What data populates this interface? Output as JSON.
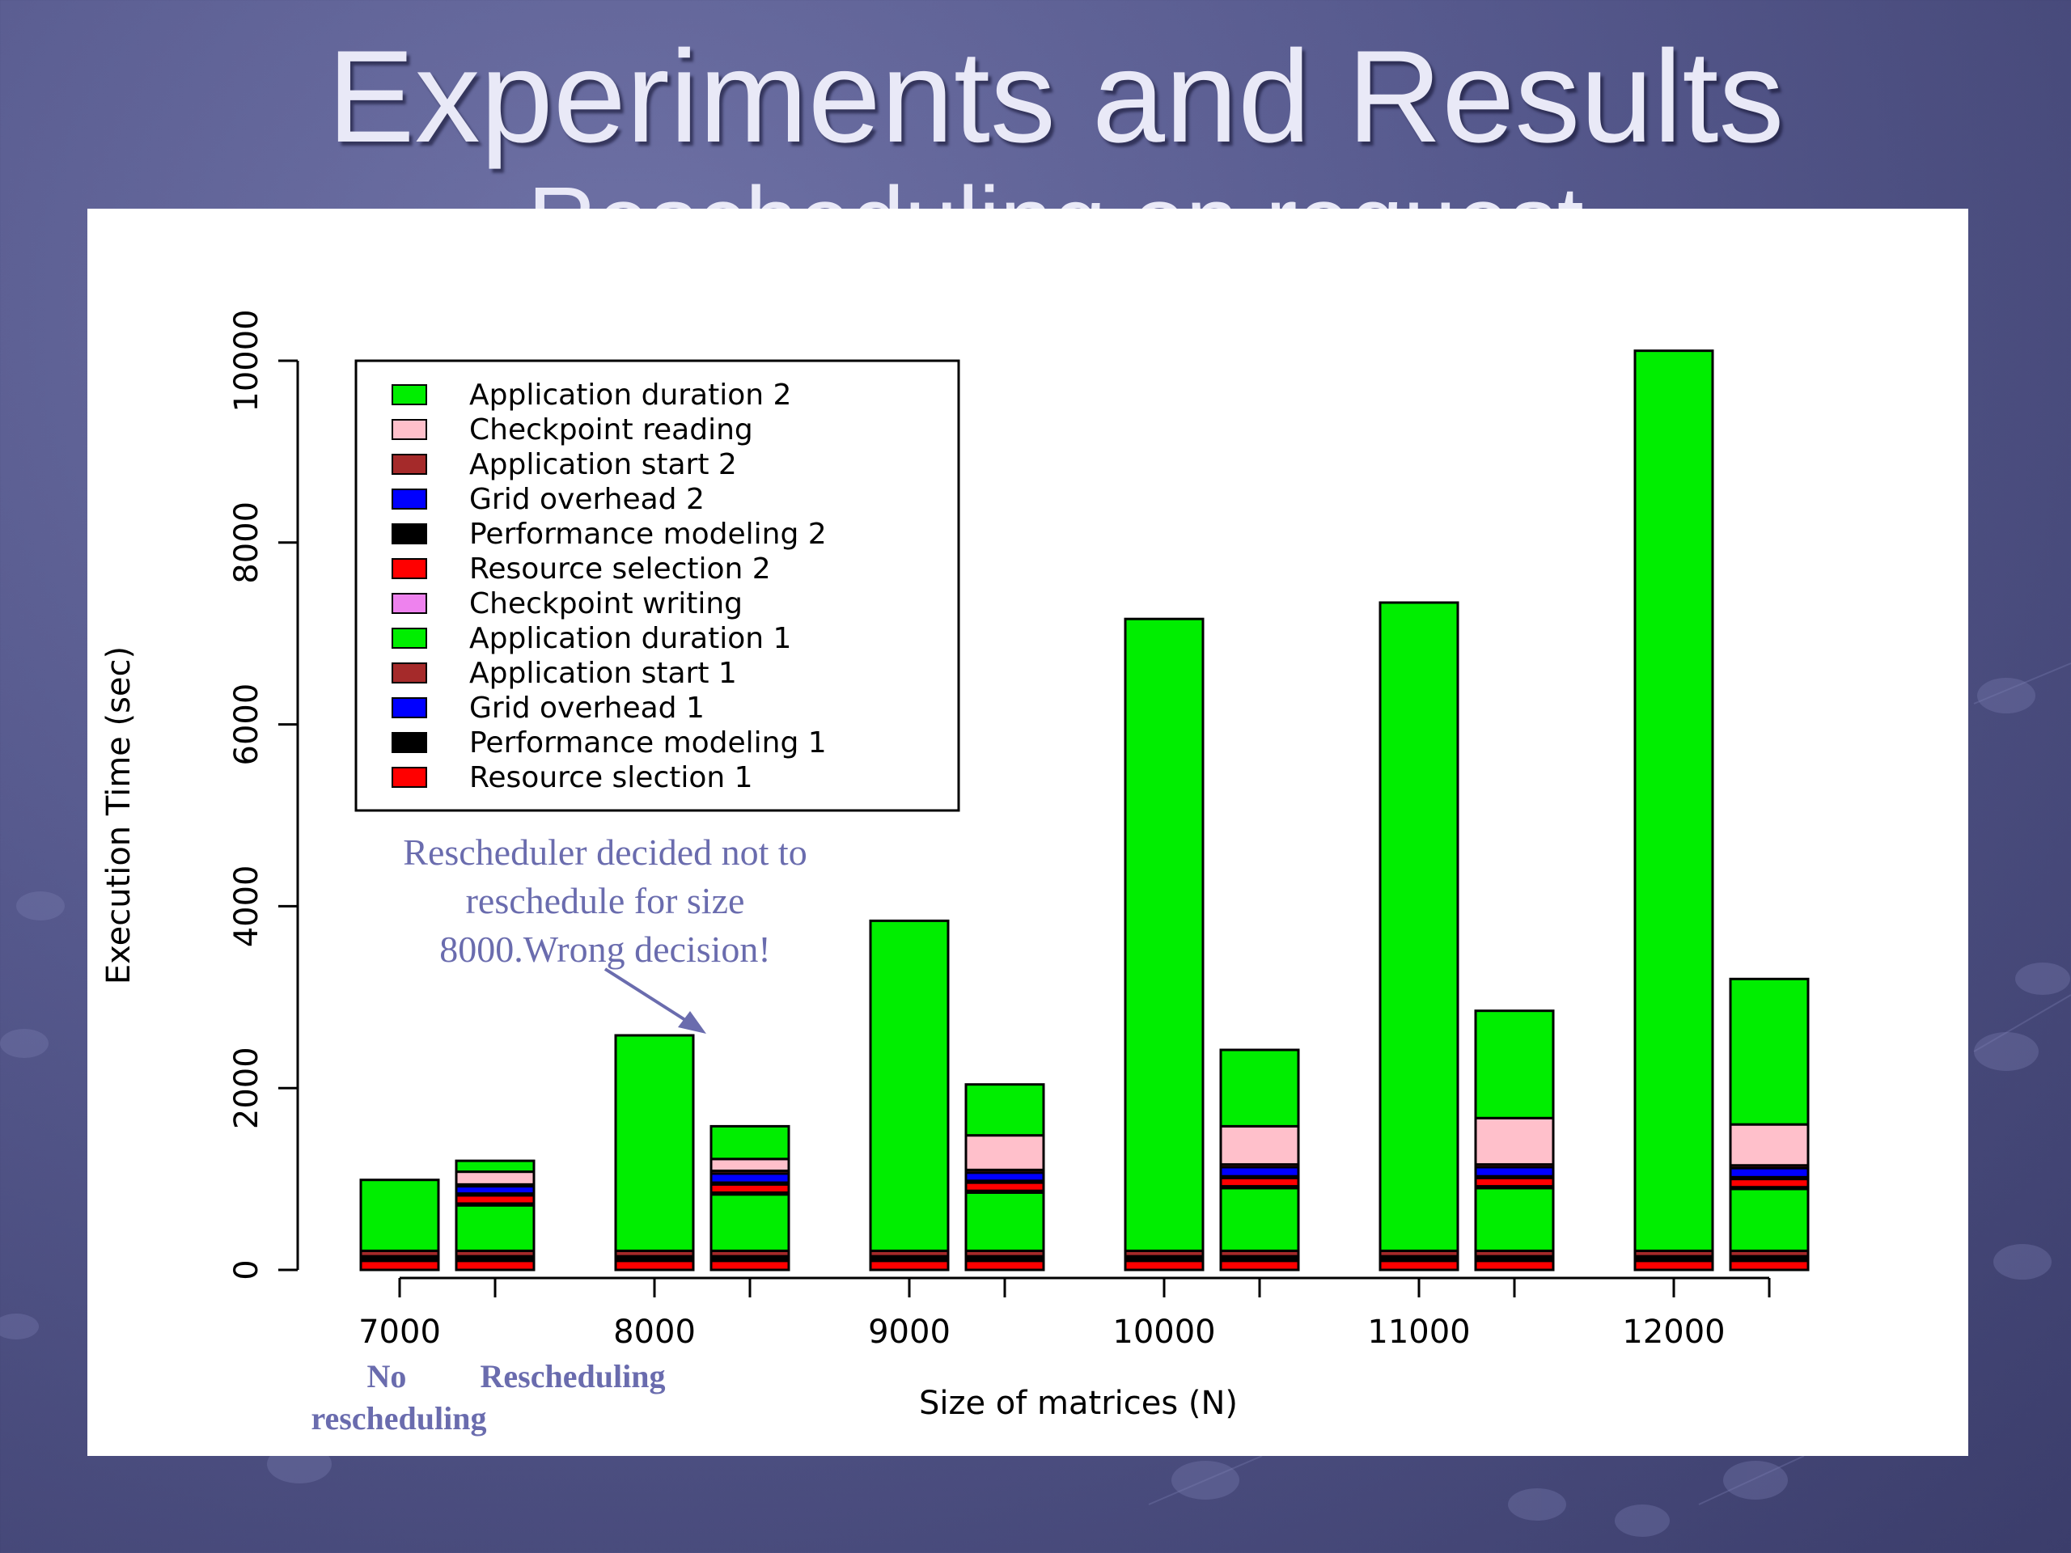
{
  "slide": {
    "title": "Experiments and Results",
    "subtitle": "Rescheduling on request"
  },
  "annotation": {
    "text_lines": [
      "Rescheduler decided not to",
      "reschedule for size",
      "8000.Wrong decision!"
    ],
    "no_label_line1": "No",
    "no_label_line2": "rescheduling",
    "re_label": "Rescheduling",
    "text_color": "#6a6cae"
  },
  "chart_data": {
    "type": "bar",
    "stacked": true,
    "xlabel": "Size of matrices (N)",
    "ylabel": "Execution Time (sec)",
    "ylim": [
      0,
      10000
    ],
    "yticks": [
      0,
      2000,
      4000,
      6000,
      8000,
      10000
    ],
    "categories": [
      "7000",
      "8000",
      "9000",
      "10000",
      "11000",
      "12000"
    ],
    "groups": [
      "No rescheduling",
      "Rescheduling"
    ],
    "legend_position": "top-left",
    "legend": [
      {
        "label": "Application duration 2",
        "color": "#00ee00"
      },
      {
        "label": "Checkpoint reading",
        "color": "#ffc0cb"
      },
      {
        "label": "Application start 2",
        "color": "#a52a2a"
      },
      {
        "label": "Grid overhead 2",
        "color": "#0000ff"
      },
      {
        "label": "Performance modeling 2",
        "color": "#000000"
      },
      {
        "label": "Resource selection 2",
        "color": "#ff0000"
      },
      {
        "label": "Checkpoint writing",
        "color": "#ee82ee"
      },
      {
        "label": "Application duration 1",
        "color": "#00ee00"
      },
      {
        "label": "Application start 1",
        "color": "#a52a2a"
      },
      {
        "label": "Grid overhead 1",
        "color": "#0000ff"
      },
      {
        "label": "Performance modeling 1",
        "color": "#000000"
      },
      {
        "label": "Resource slection 1",
        "color": "#ff0000"
      }
    ],
    "bars": [
      {
        "category": "7000",
        "group": "No rescheduling",
        "segments": [
          {
            "component": "Resource slection 1",
            "value": 100
          },
          {
            "component": "Performance modeling 1",
            "value": 40
          },
          {
            "component": "Grid overhead 1",
            "value": 10
          },
          {
            "component": "Application start 1",
            "value": 60
          },
          {
            "component": "Application duration 1",
            "value": 780
          }
        ]
      },
      {
        "category": "7000",
        "group": "Rescheduling",
        "segments": [
          {
            "component": "Resource slection 1",
            "value": 100
          },
          {
            "component": "Performance modeling 1",
            "value": 40
          },
          {
            "component": "Grid overhead 1",
            "value": 10
          },
          {
            "component": "Application start 1",
            "value": 60
          },
          {
            "component": "Application duration 1",
            "value": 500
          },
          {
            "component": "Checkpoint writing",
            "value": 20
          },
          {
            "component": "Resource selection 2",
            "value": 90
          },
          {
            "component": "Performance modeling 2",
            "value": 20
          },
          {
            "component": "Grid overhead 2",
            "value": 80
          },
          {
            "component": "Application start 2",
            "value": 20
          },
          {
            "component": "Checkpoint reading",
            "value": 140
          },
          {
            "component": "Application duration 2",
            "value": 120
          }
        ]
      },
      {
        "category": "8000",
        "group": "No rescheduling",
        "segments": [
          {
            "component": "Resource slection 1",
            "value": 100
          },
          {
            "component": "Performance modeling 1",
            "value": 40
          },
          {
            "component": "Grid overhead 1",
            "value": 10
          },
          {
            "component": "Application start 1",
            "value": 60
          },
          {
            "component": "Application duration 1",
            "value": 2370
          }
        ]
      },
      {
        "category": "8000",
        "group": "Rescheduling",
        "segments": [
          {
            "component": "Resource slection 1",
            "value": 100
          },
          {
            "component": "Performance modeling 1",
            "value": 40
          },
          {
            "component": "Grid overhead 1",
            "value": 10
          },
          {
            "component": "Application start 1",
            "value": 60
          },
          {
            "component": "Application duration 1",
            "value": 620
          },
          {
            "component": "Checkpoint writing",
            "value": 20
          },
          {
            "component": "Resource selection 2",
            "value": 90
          },
          {
            "component": "Performance modeling 2",
            "value": 20
          },
          {
            "component": "Grid overhead 2",
            "value": 100
          },
          {
            "component": "Application start 2",
            "value": 30
          },
          {
            "component": "Checkpoint reading",
            "value": 130
          },
          {
            "component": "Application duration 2",
            "value": 360
          }
        ]
      },
      {
        "category": "9000",
        "group": "No rescheduling",
        "segments": [
          {
            "component": "Resource slection 1",
            "value": 100
          },
          {
            "component": "Performance modeling 1",
            "value": 40
          },
          {
            "component": "Grid overhead 1",
            "value": 10
          },
          {
            "component": "Application start 1",
            "value": 60
          },
          {
            "component": "Application duration 1",
            "value": 3630
          }
        ]
      },
      {
        "category": "9000",
        "group": "Rescheduling",
        "segments": [
          {
            "component": "Resource slection 1",
            "value": 100
          },
          {
            "component": "Performance modeling 1",
            "value": 40
          },
          {
            "component": "Grid overhead 1",
            "value": 10
          },
          {
            "component": "Application start 1",
            "value": 60
          },
          {
            "component": "Application duration 1",
            "value": 640
          },
          {
            "component": "Checkpoint writing",
            "value": 20
          },
          {
            "component": "Resource selection 2",
            "value": 90
          },
          {
            "component": "Performance modeling 2",
            "value": 20
          },
          {
            "component": "Grid overhead 2",
            "value": 90
          },
          {
            "component": "Application start 2",
            "value": 30
          },
          {
            "component": "Checkpoint reading",
            "value": 380
          },
          {
            "component": "Application duration 2",
            "value": 560
          }
        ]
      },
      {
        "category": "10000",
        "group": "No rescheduling",
        "segments": [
          {
            "component": "Resource slection 1",
            "value": 100
          },
          {
            "component": "Performance modeling 1",
            "value": 40
          },
          {
            "component": "Grid overhead 1",
            "value": 10
          },
          {
            "component": "Application start 1",
            "value": 60
          },
          {
            "component": "Application duration 1",
            "value": 6950
          }
        ]
      },
      {
        "category": "10000",
        "group": "Rescheduling",
        "segments": [
          {
            "component": "Resource slection 1",
            "value": 100
          },
          {
            "component": "Performance modeling 1",
            "value": 40
          },
          {
            "component": "Grid overhead 1",
            "value": 10
          },
          {
            "component": "Application start 1",
            "value": 60
          },
          {
            "component": "Application duration 1",
            "value": 690
          },
          {
            "component": "Checkpoint writing",
            "value": 20
          },
          {
            "component": "Resource selection 2",
            "value": 90
          },
          {
            "component": "Performance modeling 2",
            "value": 20
          },
          {
            "component": "Grid overhead 2",
            "value": 100
          },
          {
            "component": "Application start 2",
            "value": 30
          },
          {
            "component": "Checkpoint reading",
            "value": 420
          },
          {
            "component": "Application duration 2",
            "value": 840
          }
        ]
      },
      {
        "category": "11000",
        "group": "No rescheduling",
        "segments": [
          {
            "component": "Resource slection 1",
            "value": 100
          },
          {
            "component": "Performance modeling 1",
            "value": 40
          },
          {
            "component": "Grid overhead 1",
            "value": 10
          },
          {
            "component": "Application start 1",
            "value": 60
          },
          {
            "component": "Application duration 1",
            "value": 7130
          }
        ]
      },
      {
        "category": "11000",
        "group": "Rescheduling",
        "segments": [
          {
            "component": "Resource slection 1",
            "value": 100
          },
          {
            "component": "Performance modeling 1",
            "value": 40
          },
          {
            "component": "Grid overhead 1",
            "value": 10
          },
          {
            "component": "Application start 1",
            "value": 60
          },
          {
            "component": "Application duration 1",
            "value": 690
          },
          {
            "component": "Checkpoint writing",
            "value": 20
          },
          {
            "component": "Resource selection 2",
            "value": 90
          },
          {
            "component": "Performance modeling 2",
            "value": 20
          },
          {
            "component": "Grid overhead 2",
            "value": 100
          },
          {
            "component": "Application start 2",
            "value": 30
          },
          {
            "component": "Checkpoint reading",
            "value": 510
          },
          {
            "component": "Application duration 2",
            "value": 1180
          }
        ]
      },
      {
        "category": "12000",
        "group": "No rescheduling",
        "segments": [
          {
            "component": "Resource slection 1",
            "value": 100
          },
          {
            "component": "Performance modeling 1",
            "value": 40
          },
          {
            "component": "Grid overhead 1",
            "value": 10
          },
          {
            "component": "Application start 1",
            "value": 60
          },
          {
            "component": "Application duration 1",
            "value": 9900
          }
        ]
      },
      {
        "category": "12000",
        "group": "Rescheduling",
        "segments": [
          {
            "component": "Resource slection 1",
            "value": 100
          },
          {
            "component": "Performance modeling 1",
            "value": 40
          },
          {
            "component": "Grid overhead 1",
            "value": 10
          },
          {
            "component": "Application start 1",
            "value": 60
          },
          {
            "component": "Application duration 1",
            "value": 680
          },
          {
            "component": "Checkpoint writing",
            "value": 20
          },
          {
            "component": "Resource selection 2",
            "value": 90
          },
          {
            "component": "Performance modeling 2",
            "value": 20
          },
          {
            "component": "Grid overhead 2",
            "value": 100
          },
          {
            "component": "Application start 2",
            "value": 30
          },
          {
            "component": "Checkpoint reading",
            "value": 450
          },
          {
            "component": "Application duration 2",
            "value": 1600
          }
        ]
      }
    ]
  }
}
